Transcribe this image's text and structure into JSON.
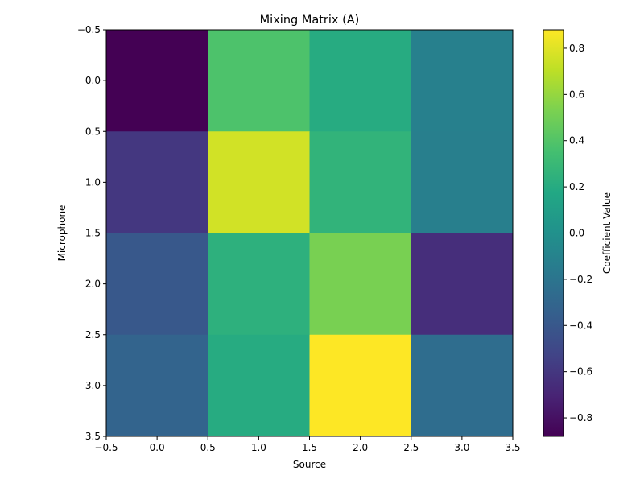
{
  "chart_data": {
    "type": "heatmap",
    "title": "Mixing Matrix (A)",
    "xlabel": "Source",
    "ylabel": "Microphone",
    "colorbar_label": "Coefficient Value",
    "colormap": "viridis",
    "x_categories": [
      0,
      1,
      2,
      3
    ],
    "y_categories": [
      0,
      1,
      2,
      3
    ],
    "values": [
      [
        -0.88,
        0.38,
        0.2,
        -0.12
      ],
      [
        -0.6,
        0.76,
        0.26,
        -0.13
      ],
      [
        -0.4,
        0.24,
        0.52,
        -0.65
      ],
      [
        -0.32,
        0.2,
        0.88,
        -0.25
      ]
    ],
    "vmin": -0.88,
    "vmax": 0.88,
    "xlim": [
      -0.5,
      3.5
    ],
    "ylim": [
      3.5,
      -0.5
    ],
    "xticks": [
      "−0.5",
      "0.0",
      "0.5",
      "1.0",
      "1.5",
      "2.0",
      "2.5",
      "3.0",
      "3.5"
    ],
    "yticks": [
      "−0.5",
      "0.0",
      "0.5",
      "1.0",
      "1.5",
      "2.0",
      "2.5",
      "3.0",
      "3.5"
    ],
    "colorbar_ticks": [
      "−0.8",
      "−0.6",
      "−0.4",
      "−0.2",
      "0.0",
      "0.2",
      "0.4",
      "0.6",
      "0.8"
    ],
    "colorbar_tick_values": [
      -0.8,
      -0.6,
      -0.4,
      -0.2,
      0.0,
      0.2,
      0.4,
      0.6,
      0.8
    ],
    "grid": false
  }
}
